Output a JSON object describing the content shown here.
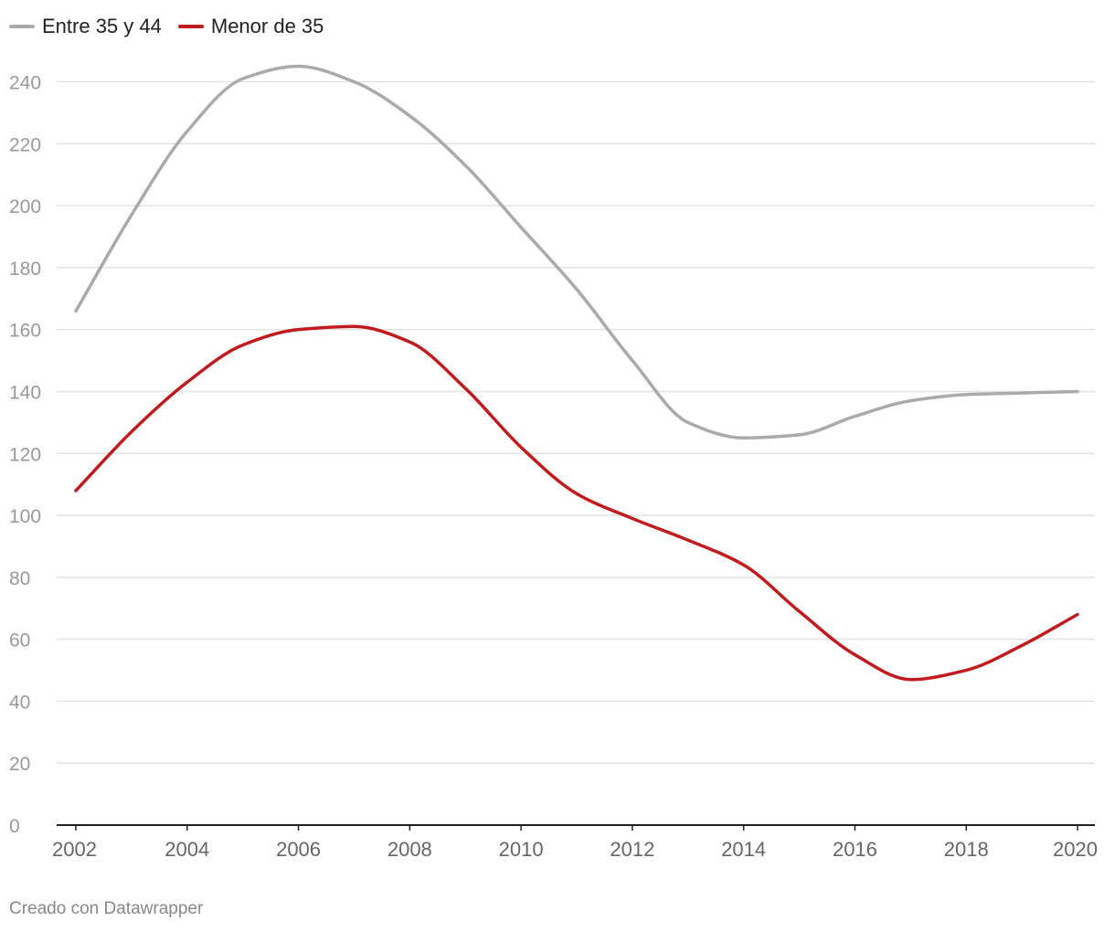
{
  "chart_data": {
    "type": "line",
    "x": [
      2002,
      2003,
      2004,
      2005,
      2006,
      2007,
      2008,
      2009,
      2010,
      2011,
      2012,
      2013,
      2014,
      2015,
      2016,
      2017,
      2018,
      2019,
      2020
    ],
    "series": [
      {
        "name": "Entre 35 y 44",
        "color": "#aaaaaa",
        "values": [
          166,
          197,
          224,
          241,
          245,
          240,
          229,
          213,
          193,
          173,
          150,
          130,
          125,
          126,
          132,
          137,
          139,
          139.5,
          140
        ]
      },
      {
        "name": "Menor de 35",
        "color": "#c11b1e",
        "values": [
          108,
          127,
          143,
          155,
          160,
          161,
          156,
          141,
          122,
          107,
          99,
          92,
          84,
          69,
          55,
          47,
          50,
          58,
          68
        ]
      }
    ],
    "y_ticks": [
      0,
      20,
      40,
      60,
      80,
      100,
      120,
      140,
      160,
      180,
      200,
      220,
      240
    ],
    "x_ticks": [
      2002,
      2004,
      2006,
      2008,
      2010,
      2012,
      2014,
      2016,
      2018,
      2020
    ],
    "ylim": [
      0,
      250
    ],
    "xlim": [
      2002,
      2020
    ],
    "grid": true,
    "legend": "top-left"
  },
  "footer": {
    "credit": "Creado con Datawrapper"
  }
}
